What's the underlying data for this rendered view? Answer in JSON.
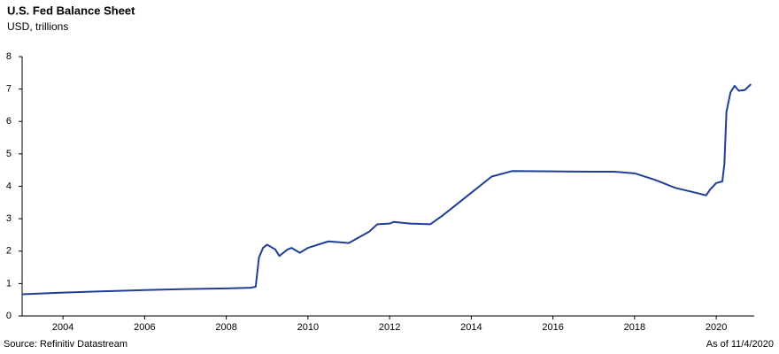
{
  "chart_data": {
    "type": "line",
    "title": "U.S. Fed Balance Sheet",
    "subtitle": "USD, trillions",
    "source": "Source: Refinitiv Datastream",
    "note": "As of 11/4/2020",
    "x": [
      2003.0,
      2004.0,
      2005.0,
      2006.0,
      2007.0,
      2008.0,
      2008.6,
      2008.72,
      2008.8,
      2008.9,
      2009.0,
      2009.2,
      2009.3,
      2009.5,
      2009.6,
      2009.8,
      2010.0,
      2010.5,
      2011.0,
      2011.5,
      2011.7,
      2012.0,
      2012.1,
      2012.5,
      2013.0,
      2013.3,
      2014.0,
      2014.5,
      2015.0,
      2016.0,
      2017.0,
      2017.5,
      2018.0,
      2018.5,
      2019.0,
      2019.5,
      2019.75,
      2019.85,
      2020.0,
      2020.15,
      2020.2,
      2020.25,
      2020.35,
      2020.45,
      2020.55,
      2020.7,
      2020.85
    ],
    "series": [
      {
        "name": "Fed balance sheet",
        "color": "#1f3f96",
        "values": [
          0.67,
          0.72,
          0.76,
          0.8,
          0.83,
          0.85,
          0.87,
          0.9,
          1.8,
          2.1,
          2.2,
          2.05,
          1.85,
          2.05,
          2.1,
          1.95,
          2.1,
          2.3,
          2.25,
          2.6,
          2.83,
          2.85,
          2.9,
          2.85,
          2.83,
          3.1,
          3.8,
          4.3,
          4.47,
          4.46,
          4.45,
          4.45,
          4.4,
          4.2,
          3.95,
          3.8,
          3.72,
          3.9,
          4.1,
          4.15,
          4.7,
          6.3,
          6.9,
          7.1,
          6.95,
          6.97,
          7.15
        ]
      }
    ],
    "xlim": [
      2003.0,
      2020.93
    ],
    "xticks": [
      2004,
      2006,
      2008,
      2010,
      2012,
      2014,
      2016,
      2018,
      2020
    ],
    "ylim": [
      0,
      8
    ],
    "yticks": [
      0,
      1,
      2,
      3,
      4,
      5,
      6,
      7,
      8
    ],
    "grid": false
  }
}
